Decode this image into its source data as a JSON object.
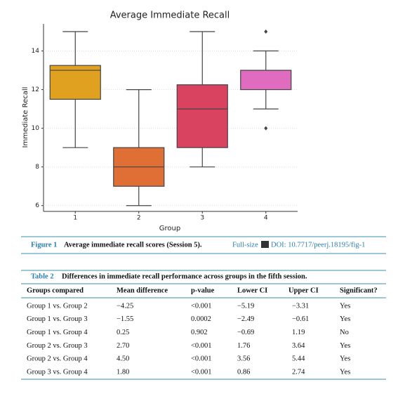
{
  "chart_data": {
    "type": "box",
    "title": "Average Immediate Recall",
    "x_label": "Group",
    "y_label": "Immediate Recall",
    "categories": [
      "1",
      "2",
      "3",
      "4"
    ],
    "boxes": [
      {
        "low": 9,
        "q1": 11.5,
        "median": 13,
        "q3": 13.25,
        "high": 15,
        "outliers": []
      },
      {
        "low": 6,
        "q1": 7,
        "median": 8,
        "q3": 9,
        "high": 12,
        "outliers": []
      },
      {
        "low": 8,
        "q1": 9,
        "median": 11,
        "q3": 12.25,
        "high": 15,
        "outliers": []
      },
      {
        "low": 11,
        "q1": 12,
        "median": 13,
        "q3": 13,
        "high": 14,
        "outliers": [
          15,
          10
        ]
      }
    ],
    "colors": [
      "#e0a020",
      "#df6f35",
      "#d9435f",
      "#e06cc0"
    ],
    "ylim": [
      5.7,
      15.4
    ],
    "yticks": [
      6,
      8,
      10,
      12,
      14
    ],
    "grid": true
  },
  "figure_caption": {
    "label": "Figure 1",
    "text": "Average immediate recall scores (Session 5).",
    "link": "Full-size",
    "doi": "DOI: 10.7717/peerj.18195/fig-1"
  },
  "table": {
    "label": "Table 2",
    "title": "Differences in immediate recall performance across groups in the fifth session.",
    "headers": [
      "Groups compared",
      "Mean difference",
      "p-value",
      "Lower CI",
      "Upper CI",
      "Significant?"
    ],
    "rows": [
      [
        "Group 1 vs. Group 2",
        "−4.25",
        "<0.001",
        "−5.19",
        "−3.31",
        "Yes"
      ],
      [
        "Group 1 vs. Group 3",
        "−1.55",
        "0.0002",
        "−2.49",
        "−0.61",
        "Yes"
      ],
      [
        "Group 1 vs. Group 4",
        "0.25",
        "0.902",
        "−0.69",
        "1.19",
        "No"
      ],
      [
        "Group 2 vs. Group 3",
        "2.70",
        "<0.001",
        "1.76",
        "3.64",
        "Yes"
      ],
      [
        "Group 2 vs. Group 4",
        "4.50",
        "<0.001",
        "3.56",
        "5.44",
        "Yes"
      ],
      [
        "Group 3 vs. Group 4",
        "1.80",
        "<0.001",
        "0.86",
        "2.74",
        "Yes"
      ]
    ]
  }
}
